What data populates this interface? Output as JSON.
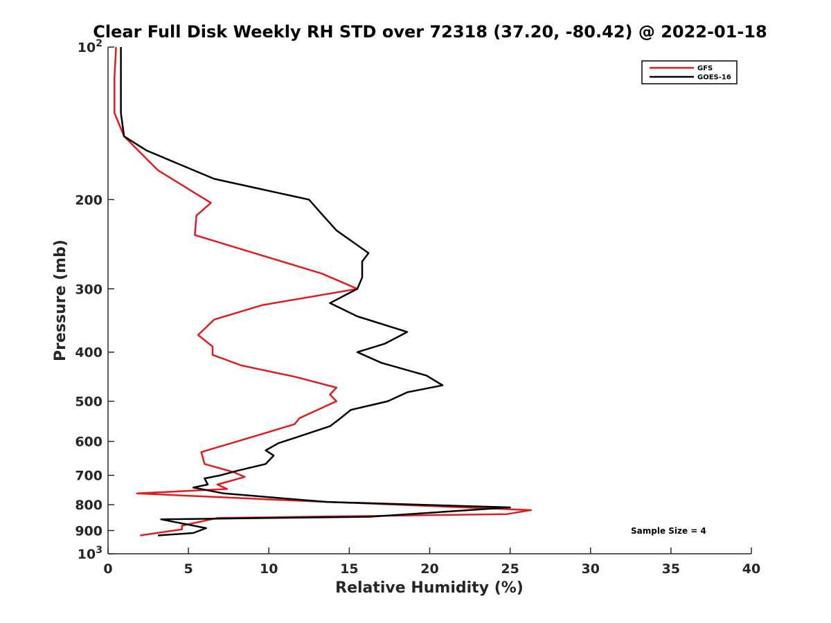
{
  "chart_data": {
    "type": "line",
    "title": "Clear Full Disk Weekly RH STD over 72318 (37.20, -80.42) @ 2022-01-18",
    "xlabel": "Relative Humidity (%)",
    "ylabel": "Pressure (mb)",
    "xlim": [
      0,
      40
    ],
    "ylim": [
      100,
      1000
    ],
    "y_scale": "log",
    "y_reversed": true,
    "grid": false,
    "legend_position": "top-right",
    "x_ticks": [
      "0",
      "5",
      "10",
      "15",
      "20",
      "25",
      "30",
      "35",
      "40"
    ],
    "y_ticks": [
      {
        "value": 100,
        "base": "10",
        "exp": "2"
      },
      {
        "value": 200,
        "label": "200"
      },
      {
        "value": 300,
        "label": "300"
      },
      {
        "value": 400,
        "label": "400"
      },
      {
        "value": 500,
        "label": "500"
      },
      {
        "value": 600,
        "label": "600"
      },
      {
        "value": 700,
        "label": "700"
      },
      {
        "value": 800,
        "label": "800"
      },
      {
        "value": 900,
        "label": "900"
      },
      {
        "value": 1000,
        "base": "10",
        "exp": "3"
      }
    ],
    "annotation": "Sample Size = 4",
    "series": [
      {
        "name": "GFS",
        "color": "#e41a1c",
        "points": [
          [
            0.5,
            100
          ],
          [
            0.4,
            115
          ],
          [
            0.4,
            135
          ],
          [
            1.0,
            150
          ],
          [
            3.1,
            175
          ],
          [
            6.4,
            203
          ],
          [
            5.5,
            215
          ],
          [
            5.4,
            235
          ],
          [
            13.3,
            280
          ],
          [
            15.5,
            300
          ],
          [
            9.6,
            323
          ],
          [
            6.6,
            345
          ],
          [
            5.6,
            370
          ],
          [
            6.5,
            390
          ],
          [
            6.5,
            405
          ],
          [
            8.3,
            425
          ],
          [
            11.7,
            448
          ],
          [
            14.2,
            470
          ],
          [
            13.8,
            485
          ],
          [
            14.2,
            500
          ],
          [
            11.9,
            540
          ],
          [
            11.6,
            555
          ],
          [
            9.2,
            585
          ],
          [
            5.8,
            630
          ],
          [
            6.0,
            665
          ],
          [
            7.8,
            690
          ],
          [
            8.5,
            705
          ],
          [
            6.8,
            730
          ],
          [
            7.4,
            745
          ],
          [
            1.8,
            760
          ],
          [
            11.5,
            785
          ],
          [
            26.3,
            820
          ],
          [
            24.8,
            835
          ],
          [
            6.8,
            850
          ],
          [
            4.6,
            880
          ],
          [
            4.6,
            895
          ],
          [
            2.0,
            920
          ]
        ]
      },
      {
        "name": "GOES-16",
        "color": "#000000",
        "points": [
          [
            0.8,
            100
          ],
          [
            0.8,
            115
          ],
          [
            0.8,
            135
          ],
          [
            1.0,
            150
          ],
          [
            2.4,
            160
          ],
          [
            6.6,
            182
          ],
          [
            12.5,
            200
          ],
          [
            13.2,
            212
          ],
          [
            14.2,
            230
          ],
          [
            16.2,
            255
          ],
          [
            15.8,
            265
          ],
          [
            15.8,
            285
          ],
          [
            15.5,
            300
          ],
          [
            13.8,
            320
          ],
          [
            15.5,
            340
          ],
          [
            18.6,
            365
          ],
          [
            17.2,
            385
          ],
          [
            15.5,
            400
          ],
          [
            17.0,
            420
          ],
          [
            19.8,
            445
          ],
          [
            20.8,
            465
          ],
          [
            18.6,
            480
          ],
          [
            17.4,
            500
          ],
          [
            15.1,
            520
          ],
          [
            14.3,
            545
          ],
          [
            13.8,
            560
          ],
          [
            12.0,
            585
          ],
          [
            10.6,
            605
          ],
          [
            9.8,
            625
          ],
          [
            10.3,
            640
          ],
          [
            9.8,
            665
          ],
          [
            8.1,
            685
          ],
          [
            7.0,
            700
          ],
          [
            6.0,
            710
          ],
          [
            6.2,
            730
          ],
          [
            5.3,
            740
          ],
          [
            7.2,
            760
          ],
          [
            13.6,
            790
          ],
          [
            25.0,
            810
          ],
          [
            16.3,
            845
          ],
          [
            3.3,
            855
          ],
          [
            6.1,
            890
          ],
          [
            5.3,
            910
          ],
          [
            3.1,
            920
          ]
        ]
      }
    ]
  }
}
